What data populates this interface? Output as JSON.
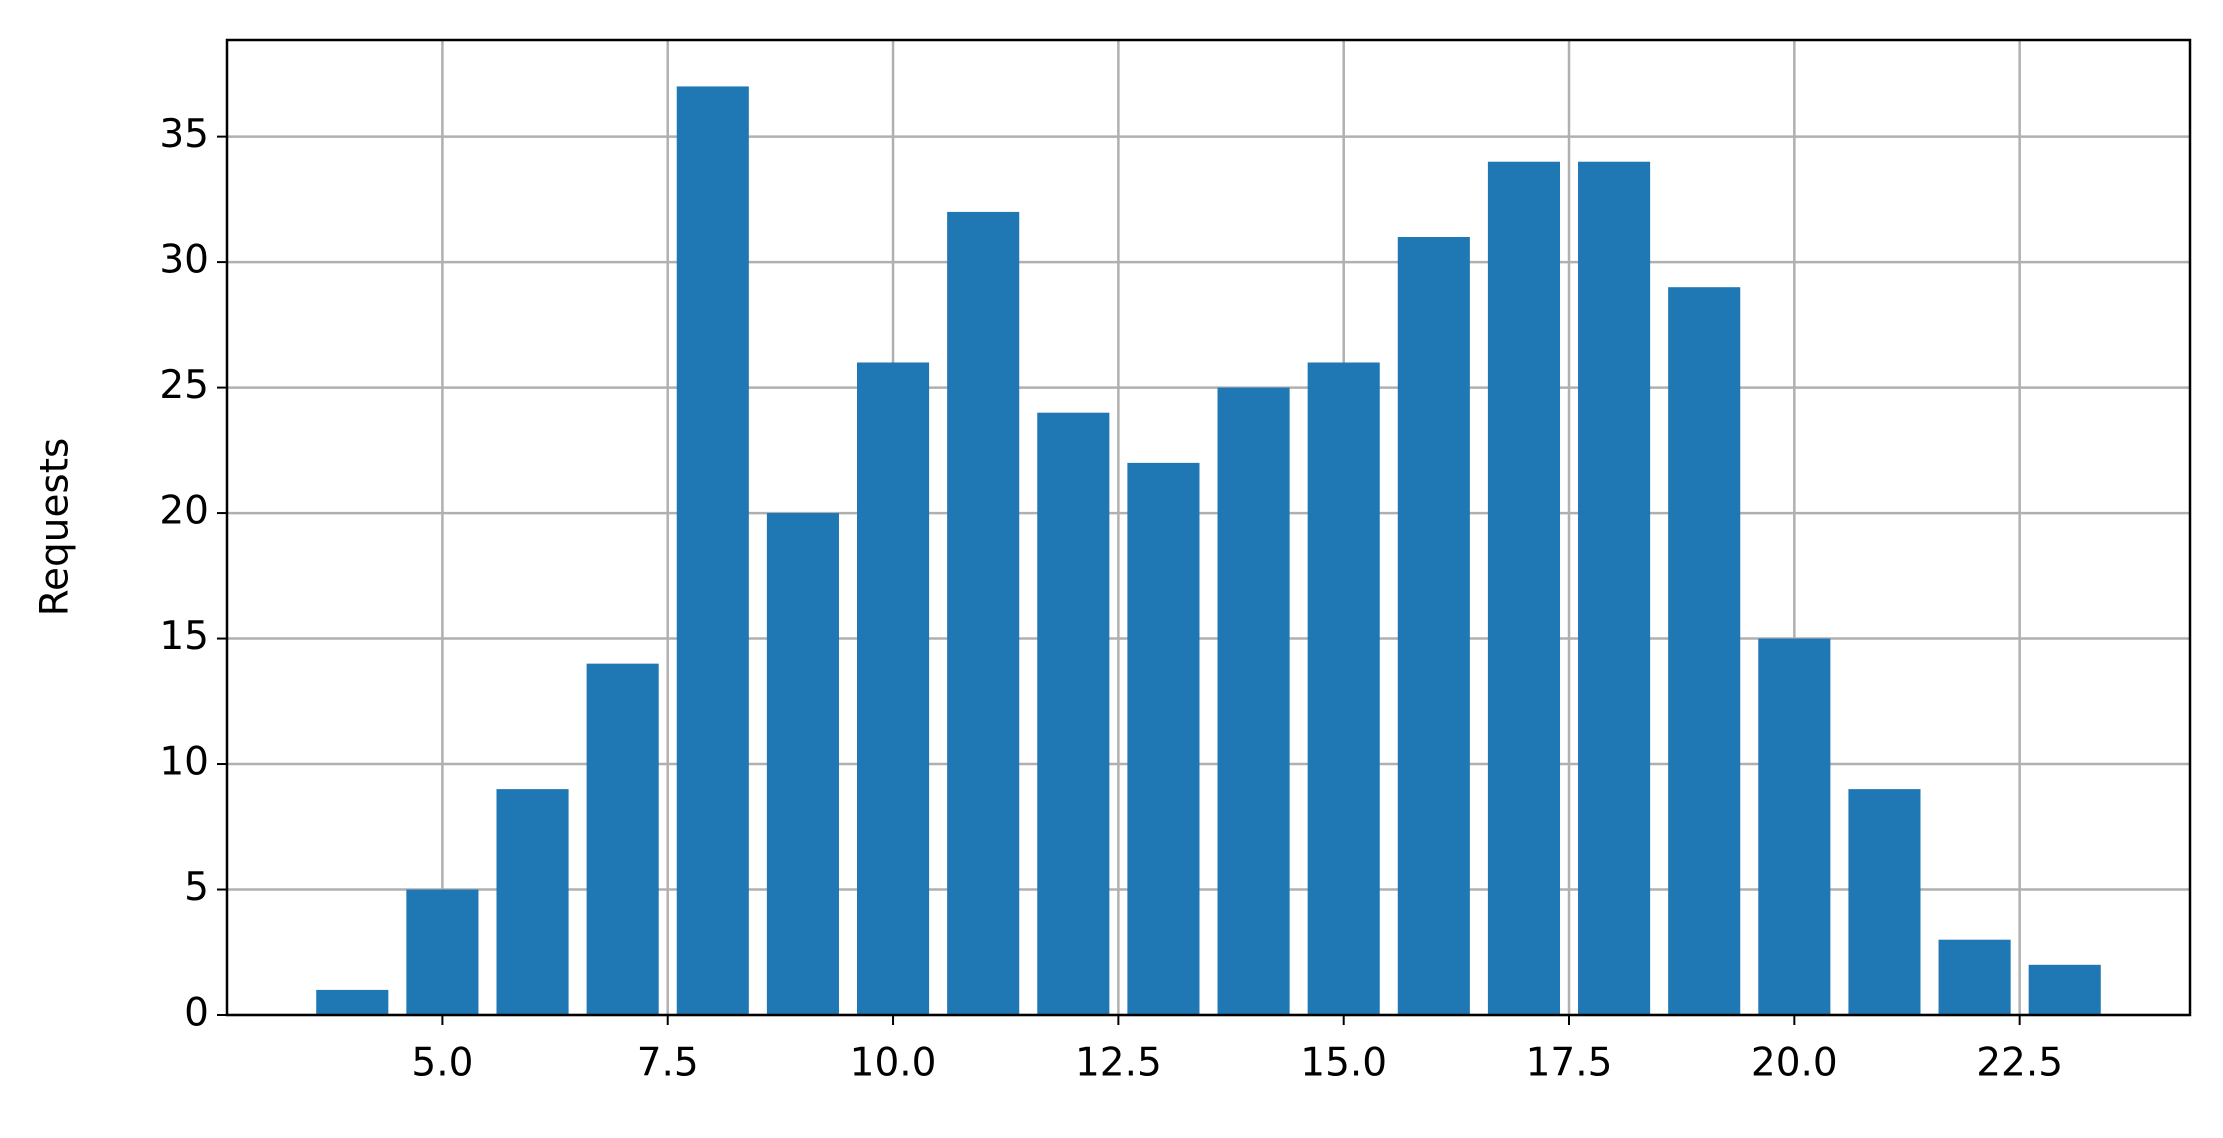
{
  "chart_data": {
    "type": "bar",
    "y_label": "Requests",
    "x": [
      4,
      5,
      6,
      7,
      8,
      9,
      10,
      11,
      12,
      13,
      14,
      15,
      16,
      17,
      18,
      19,
      20,
      21,
      22,
      23
    ],
    "values": [
      1,
      5,
      9,
      14,
      37,
      20,
      26,
      32,
      24,
      22,
      25,
      26,
      31,
      34,
      34,
      29,
      15,
      9,
      3,
      2
    ],
    "color": "#1f77b4",
    "xlim": [
      2.61,
      24.39
    ],
    "xticks": [
      {
        "value": 5,
        "label": "5.0"
      },
      {
        "value": 7.5,
        "label": "7.5"
      },
      {
        "value": 10,
        "label": "10.0"
      },
      {
        "value": 12.5,
        "label": "12.5"
      },
      {
        "value": 15,
        "label": "15.0"
      },
      {
        "value": 17.5,
        "label": "17.5"
      },
      {
        "value": 20,
        "label": "20.0"
      },
      {
        "value": 22.5,
        "label": "22.5"
      }
    ],
    "ylim": [
      0,
      38.85
    ],
    "yticks": [
      0,
      5,
      10,
      15,
      20,
      25,
      30,
      35
    ],
    "grid": true
  }
}
